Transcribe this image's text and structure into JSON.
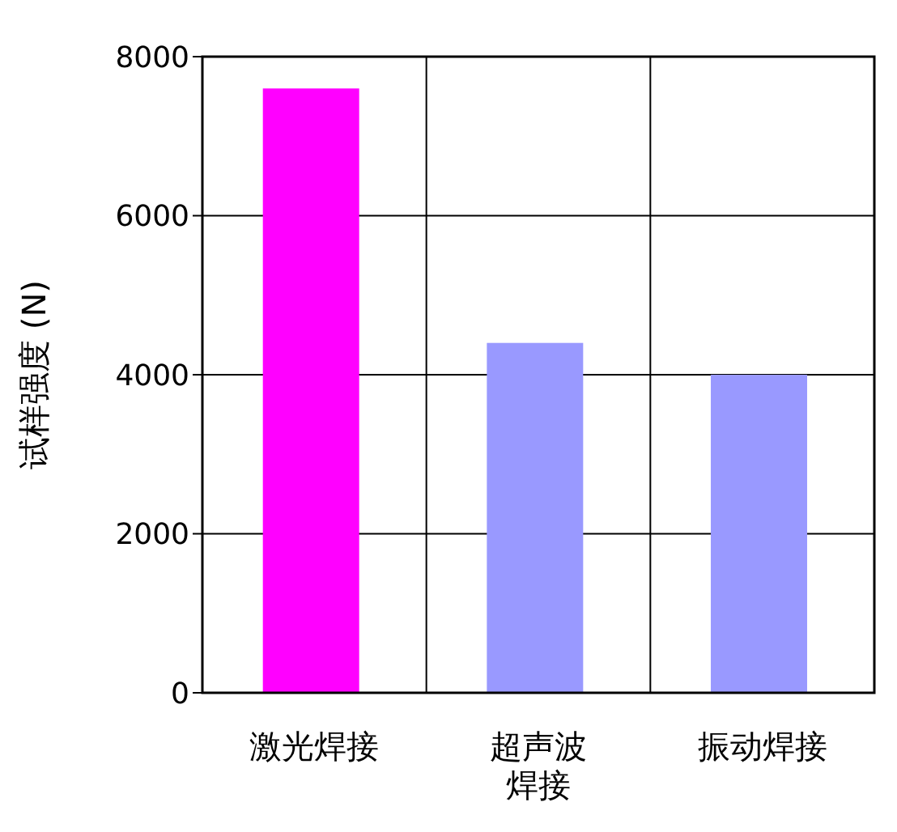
{
  "chart_data": {
    "type": "bar",
    "ylabel": "试样强度 (N)",
    "categories": [
      "激光焊接",
      "超声波焊接",
      "振动焊接"
    ],
    "values": [
      7600,
      4400,
      4000
    ],
    "colors": [
      "#ff00ff",
      "#9999ff",
      "#9999ff"
    ],
    "ylim": [
      0,
      8000
    ],
    "yticks": [
      0,
      2000,
      4000,
      6000,
      8000
    ],
    "grid": true
  }
}
